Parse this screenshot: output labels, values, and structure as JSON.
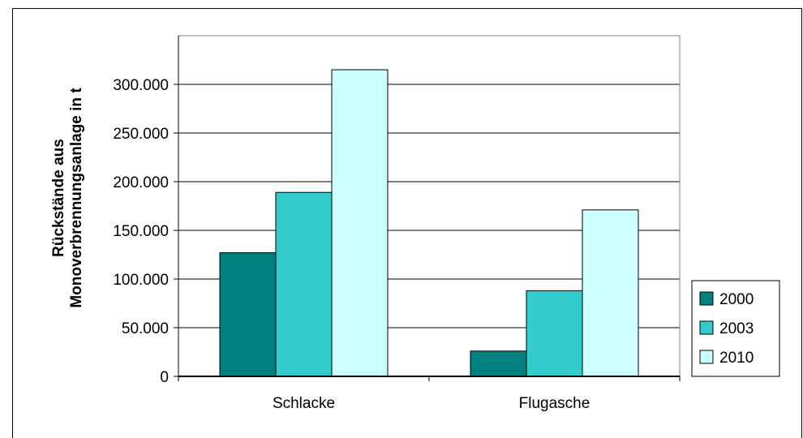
{
  "chart_data": {
    "type": "bar",
    "categories": [
      "Schlacke",
      "Flugasche"
    ],
    "series": [
      {
        "name": "2000",
        "values": [
          127000,
          26000
        ],
        "color": "#008080"
      },
      {
        "name": "2003",
        "values": [
          189000,
          88000
        ],
        "color": "#33cccc"
      },
      {
        "name": "2010",
        "values": [
          315000,
          171000
        ],
        "color": "#ccffff"
      }
    ],
    "ylabel_line1": "Rückstände aus",
    "ylabel_line2": "Monoverbrennungsanlage in t",
    "ylim": [
      0,
      350000
    ],
    "yticks": [
      0,
      50000,
      100000,
      150000,
      200000,
      250000,
      300000
    ],
    "ytick_labels": [
      "0",
      "50.000",
      "100.000",
      "150.000",
      "200.000",
      "250.000",
      "300.000"
    ],
    "grid": true,
    "legend_position": "right"
  }
}
